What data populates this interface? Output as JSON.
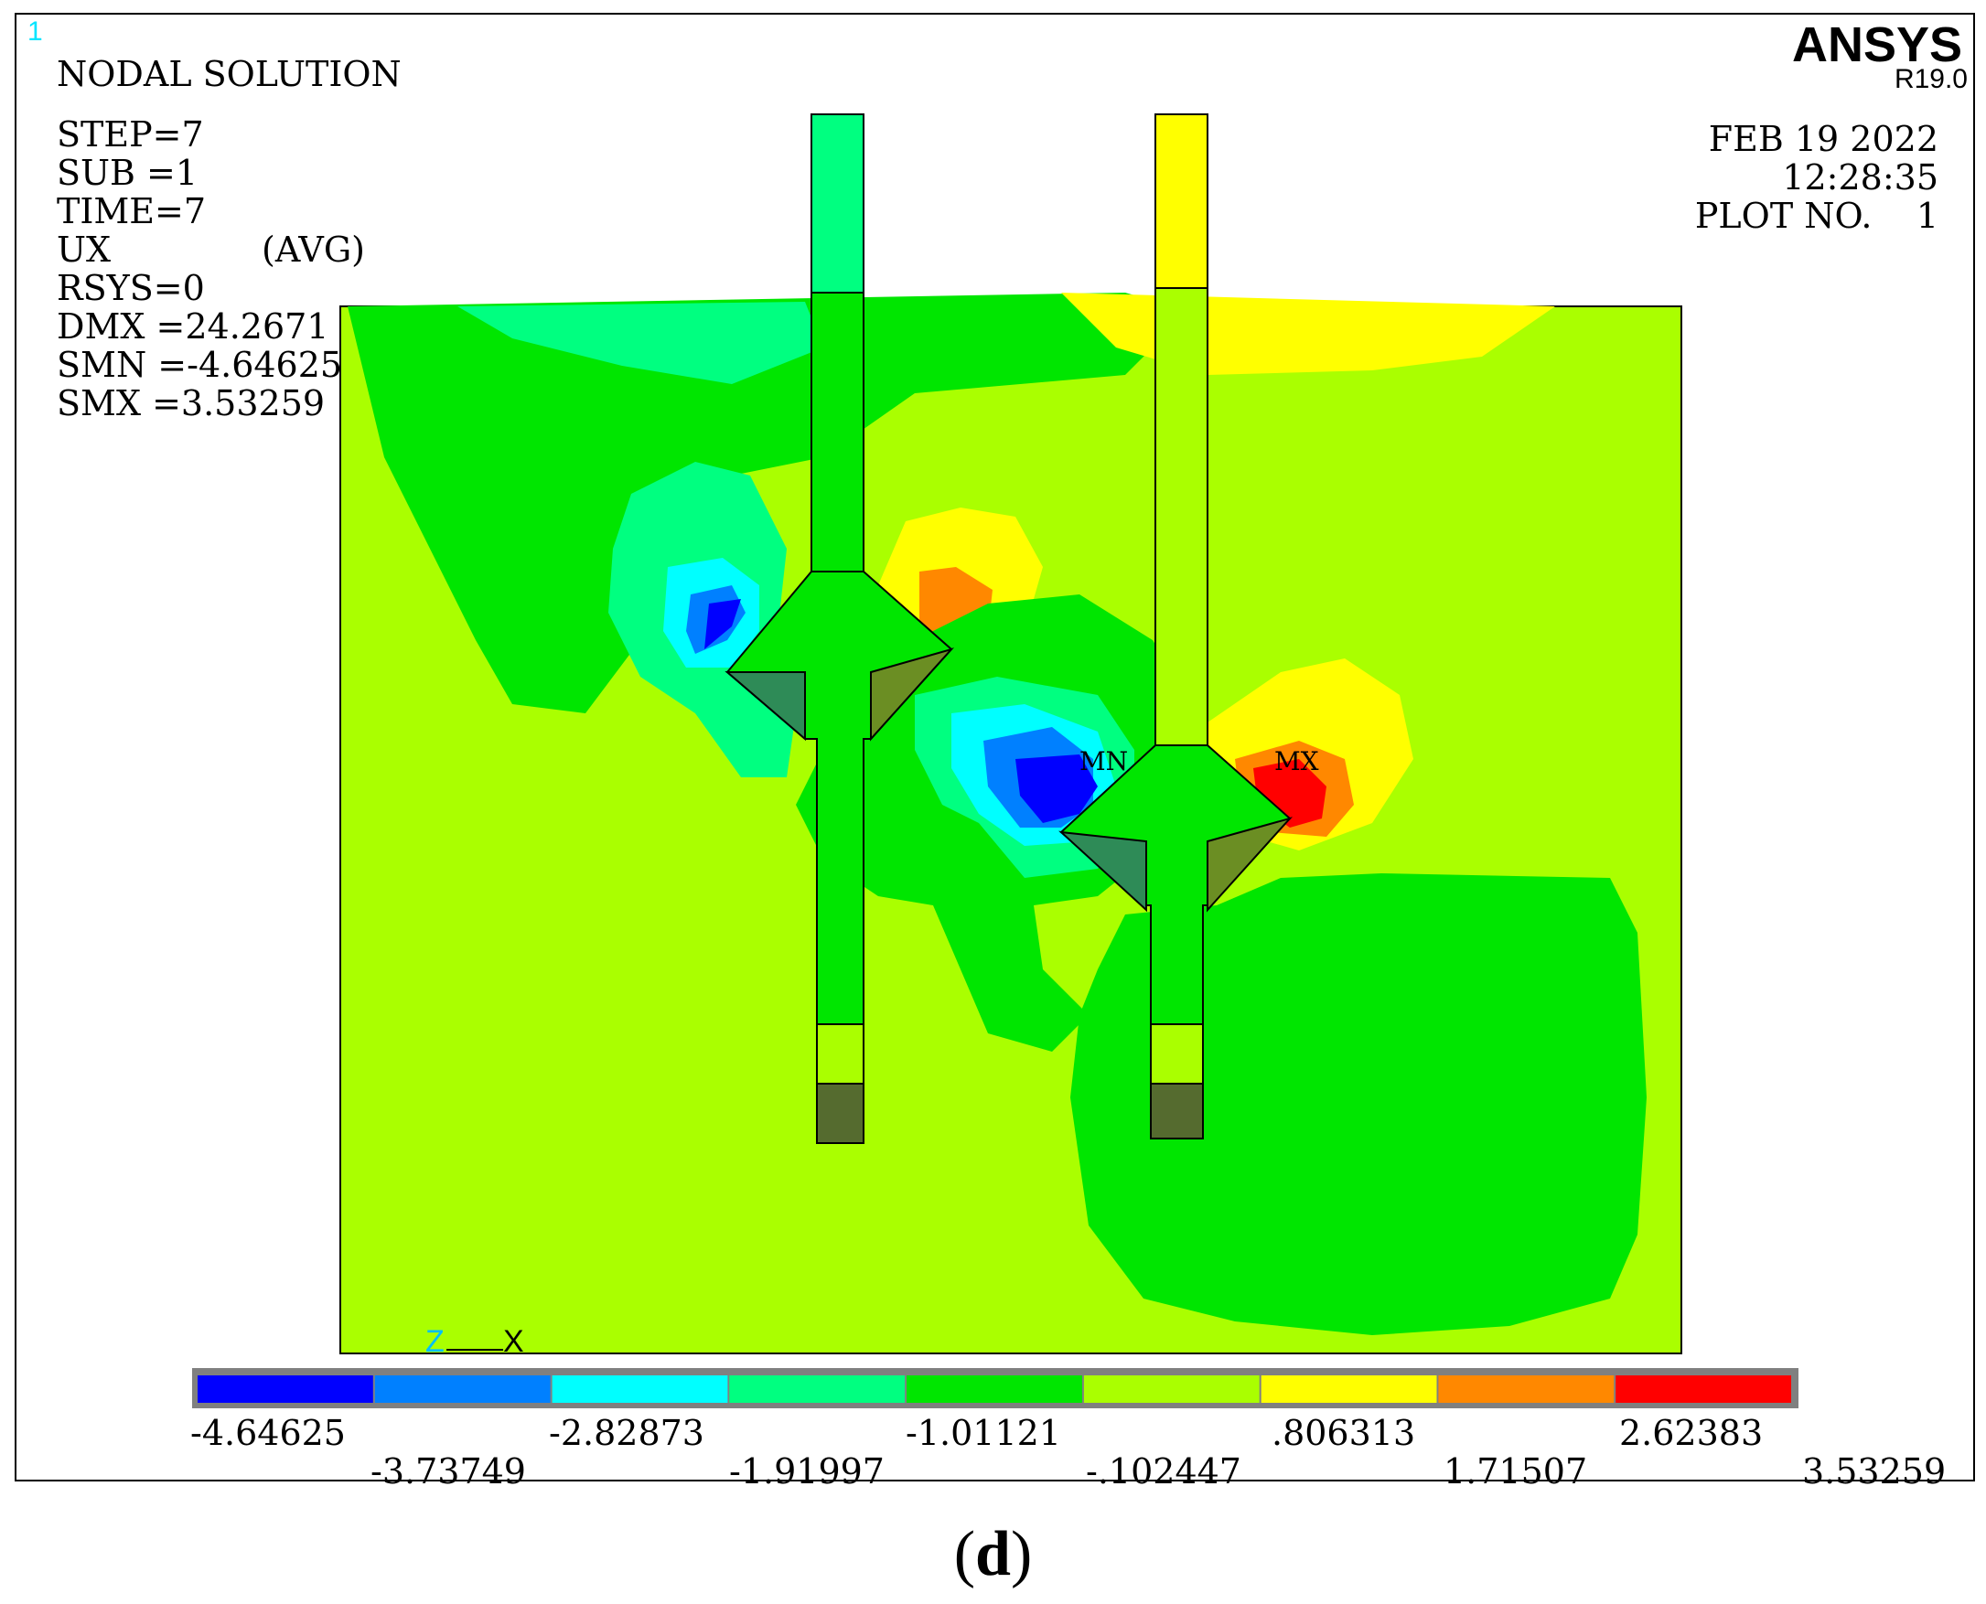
{
  "header": {
    "window_number": "1",
    "title": "NODAL SOLUTION",
    "brand": "ANSYS",
    "release": "R19.0",
    "step": "STEP=7",
    "sub": "SUB =1",
    "time": "TIME=7",
    "variable": "UX",
    "averaging": "(AVG)",
    "rsys": "RSYS=0",
    "dmx": "DMX =24.2671",
    "smn": "SMN =-4.64625",
    "smx": "SMX =3.53259",
    "date": "FEB 19 2022",
    "clock": "12:28:35",
    "plot_no": "PLOT NO.    1"
  },
  "annotations": {
    "min_marker": "MN",
    "max_marker": "MX",
    "axis_z": "Z",
    "axis_x": "X"
  },
  "legend": {
    "colors": [
      "#0000ff",
      "#0080ff",
      "#00ffff",
      "#00ff80",
      "#00e600",
      "#aaff00",
      "#ffff00",
      "#ff8800",
      "#ff0000"
    ],
    "labels_top": [
      "-4.64625",
      "-2.82873",
      "-1.01121",
      ".806313",
      "2.62383"
    ],
    "labels_bottom": [
      "-3.73749",
      "-1.91997",
      "-.102447",
      "1.71507",
      "3.53259"
    ]
  },
  "caption": {
    "open": "(",
    "letter": "d",
    "close": ")"
  }
}
